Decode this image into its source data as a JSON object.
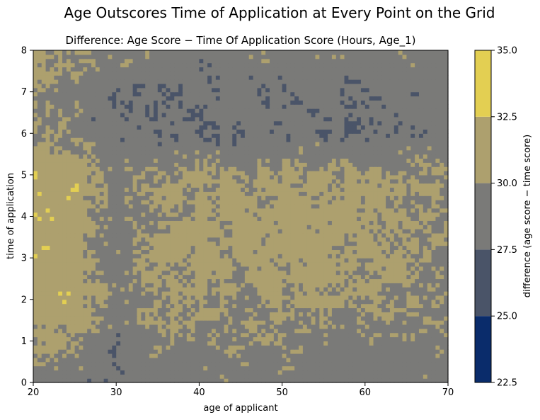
{
  "chart_data": {
    "type": "heatmap",
    "suptitle": "Age Outscores Time of Application at Every Point on the Grid",
    "title": "Difference: Age Score − Time Of Application Score (Hours, Age_1)",
    "xlabel": "age of applicant",
    "ylabel": "time of application",
    "xlim": [
      20,
      70
    ],
    "ylim": [
      0,
      8
    ],
    "xticks": [
      "20",
      "30",
      "40",
      "50",
      "60",
      "70"
    ],
    "yticks": [
      "0",
      "1",
      "2",
      "3",
      "4",
      "5",
      "6",
      "7",
      "8"
    ],
    "colorbar": {
      "label": "difference (age score − time score)",
      "levels": [
        22.5,
        25.0,
        27.5,
        30.0,
        32.5,
        35.0
      ],
      "ticks": [
        "22.5",
        "25.0",
        "27.5",
        "30.0",
        "32.5",
        "35.0"
      ],
      "colors": [
        "#0a2c6b",
        "#4a5468",
        "#7a7a78",
        "#ada06e",
        "#e3cf52"
      ]
    },
    "grid": false,
    "approximate_field": {
      "x": [
        20,
        25,
        30,
        35,
        40,
        45,
        50,
        55,
        60,
        65,
        70
      ],
      "y": [
        0,
        1,
        2,
        3,
        4,
        5,
        6,
        7,
        8
      ],
      "values": [
        [
          29.0,
          28.6,
          28.2,
          28.8,
          28.6,
          28.8,
          28.5,
          28.6,
          28.3,
          28.4,
          28.7
        ],
        [
          30.6,
          30.3,
          28.2,
          29.5,
          29.3,
          30.1,
          29.6,
          29.3,
          29.1,
          29.3,
          29.6
        ],
        [
          31.6,
          31.4,
          28.9,
          30.4,
          30.3,
          29.8,
          30.3,
          30.0,
          30.4,
          29.6,
          29.9
        ],
        [
          31.2,
          31.1,
          28.6,
          30.7,
          30.3,
          30.9,
          30.5,
          31.0,
          30.2,
          30.7,
          30.1
        ],
        [
          31.6,
          31.7,
          28.6,
          30.4,
          30.9,
          30.6,
          31.1,
          30.4,
          30.8,
          29.9,
          30.2
        ],
        [
          31.3,
          31.6,
          28.9,
          30.1,
          30.5,
          30.1,
          30.4,
          30.6,
          30.3,
          30.4,
          29.7
        ],
        [
          29.6,
          29.4,
          28.4,
          27.6,
          27.8,
          28.0,
          28.3,
          27.9,
          27.4,
          28.1,
          28.5
        ],
        [
          30.6,
          29.3,
          27.9,
          28.3,
          28.0,
          28.6,
          28.3,
          28.9,
          28.1,
          28.7,
          29.2
        ],
        [
          30.9,
          30.4,
          29.6,
          29.1,
          28.8,
          29.4,
          29.0,
          29.3,
          29.1,
          29.0,
          28.6
        ]
      ]
    }
  }
}
